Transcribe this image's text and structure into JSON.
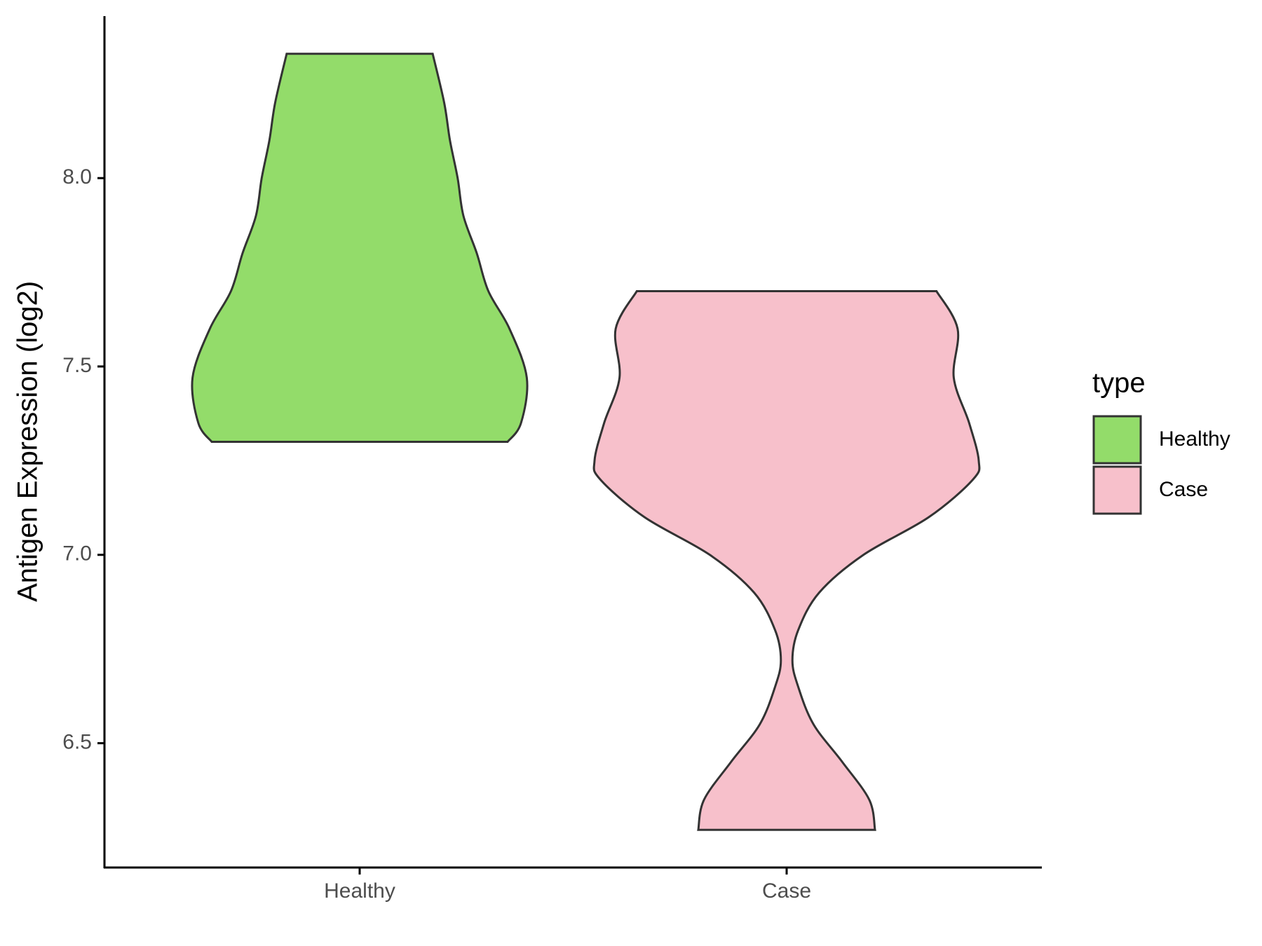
{
  "chart_data": {
    "type": "violin",
    "y_label": "Antigen Expression (log2)",
    "categories": [
      "Healthy",
      "Case"
    ],
    "legend_title": "type",
    "legend_position": "right",
    "series": [
      {
        "name": "Healthy",
        "color": "#93dc6a",
        "profile": {
          "y": [
            7.3,
            7.35,
            7.47,
            7.6,
            7.7,
            7.8,
            7.9,
            8.0,
            8.1,
            8.2,
            8.33
          ],
          "width": [
            0.77,
            0.84,
            0.87,
            0.78,
            0.67,
            0.61,
            0.54,
            0.51,
            0.47,
            0.44,
            0.38
          ]
        }
      },
      {
        "name": "Case",
        "color": "#f7c0cb",
        "profile": {
          "y": [
            6.27,
            6.35,
            6.45,
            6.55,
            6.65,
            6.72,
            6.8,
            6.9,
            7.0,
            7.1,
            7.2,
            7.25,
            7.35,
            7.47,
            7.6,
            7.7
          ],
          "width": [
            0.46,
            0.43,
            0.29,
            0.14,
            0.06,
            0.03,
            0.06,
            0.17,
            0.4,
            0.74,
            0.97,
            1.0,
            0.95,
            0.87,
            0.89,
            0.78
          ]
        }
      }
    ],
    "ylim": [
      6.17,
      8.43
    ],
    "yticks": [
      6.5,
      {
        "value": 7.0,
        "label": "7.0"
      },
      7.5,
      {
        "value": 8.0,
        "label": "8.0"
      }
    ],
    "grid": false
  }
}
